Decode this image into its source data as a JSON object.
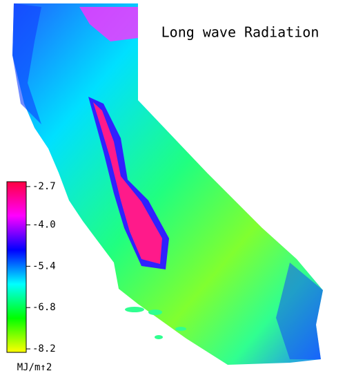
{
  "title": "Long wave Radiation",
  "colorbar": {
    "label": "MJ/m↑2",
    "lim": [
      -8.2,
      -2.7
    ],
    "ticks": [
      {
        "value": -2.7,
        "label": "-2.7"
      },
      {
        "value": -4.0,
        "label": "-4.0"
      },
      {
        "value": -5.4,
        "label": "-5.4"
      },
      {
        "value": -6.8,
        "label": "-6.8"
      },
      {
        "value": -8.2,
        "label": "-8.2"
      }
    ],
    "colors": [
      "#ffff00",
      "#00ff00",
      "#00ffff",
      "#0000ff",
      "#ff00ff",
      "#ff0040"
    ]
  }
}
